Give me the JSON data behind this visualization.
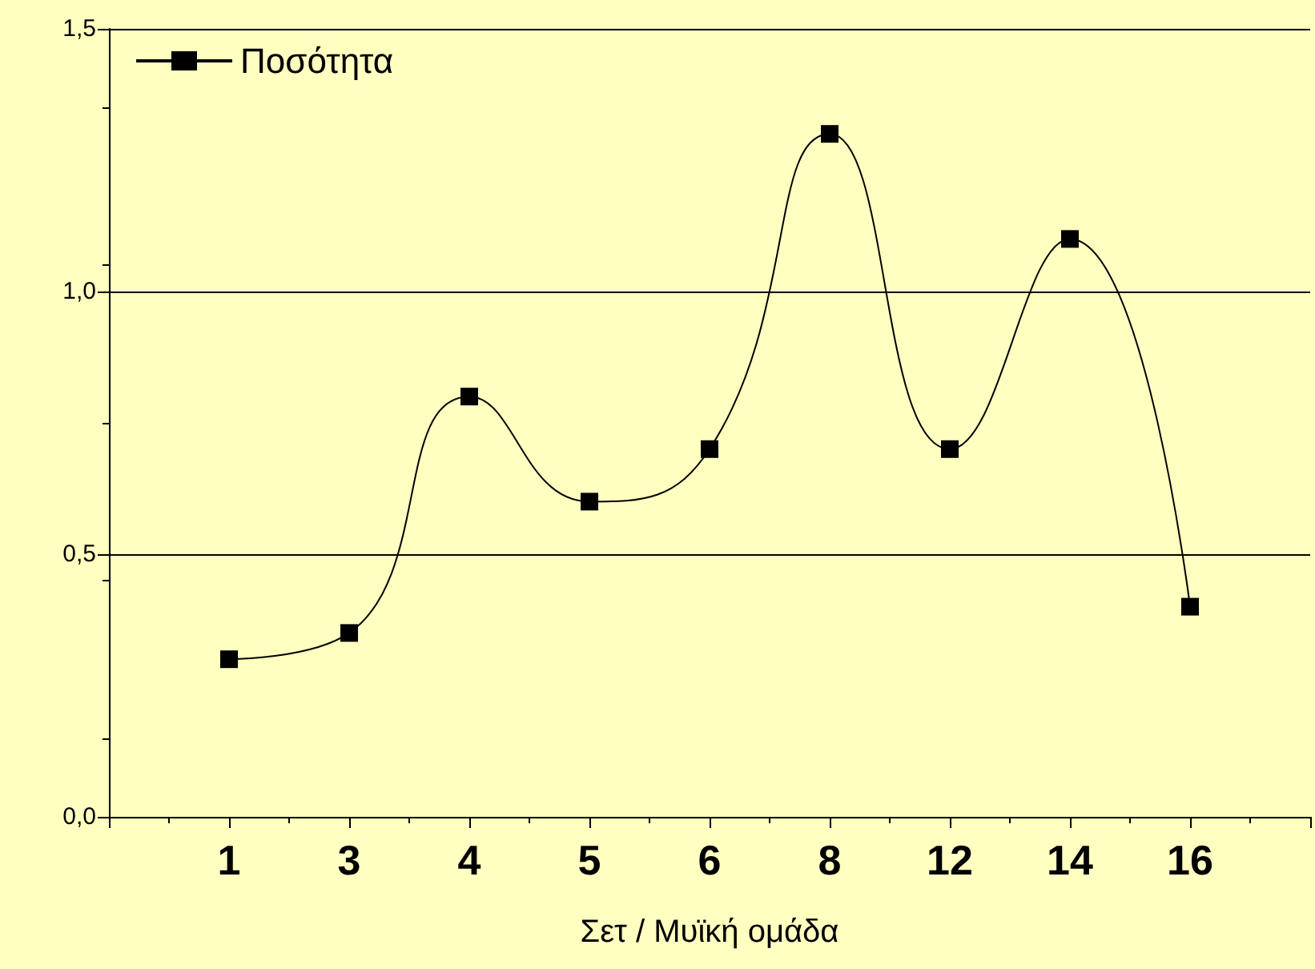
{
  "chart_data": {
    "type": "line",
    "xlabel": "Σετ / Μυϊκή ομάδα",
    "categories": [
      "1",
      "3",
      "4",
      "5",
      "6",
      "8",
      "12",
      "14",
      "16"
    ],
    "series": [
      {
        "name": "Ποσότητα",
        "color": "#000000",
        "values": [
          0.3,
          0.35,
          0.8,
          0.6,
          0.7,
          1.3,
          0.7,
          1.1,
          0.4
        ]
      }
    ],
    "ylim": [
      0,
      1.5
    ],
    "yticks": [
      {
        "value": 0,
        "label": "0,0"
      },
      {
        "value": 0.5,
        "label": "0,5"
      },
      {
        "value": 1,
        "label": "1,0"
      },
      {
        "value": 1.5,
        "label": "1,5"
      }
    ],
    "grid": "y",
    "legend": "top left",
    "marker": "square",
    "line_style": "solid"
  }
}
